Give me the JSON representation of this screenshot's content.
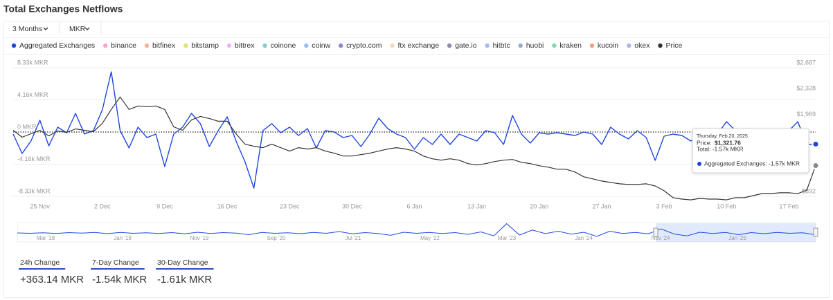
{
  "header": {
    "title": "Total Exchanges Netflows"
  },
  "controls": {
    "range": "3 Months",
    "unit": "MKR"
  },
  "chart_data": {
    "type": "line",
    "categories": [
      null,
      null,
      null,
      "25 Nov",
      null,
      null,
      null,
      null,
      null,
      null,
      "2 Dec",
      null,
      null,
      null,
      null,
      null,
      null,
      "9 Dec",
      null,
      null,
      null,
      null,
      null,
      null,
      "16 Dec",
      null,
      null,
      null,
      null,
      null,
      null,
      "23 Dec",
      null,
      null,
      null,
      null,
      null,
      null,
      "30 Dec",
      null,
      null,
      null,
      null,
      null,
      null,
      "6 Jan",
      null,
      null,
      null,
      null,
      null,
      null,
      "13 Jan",
      null,
      null,
      null,
      null,
      null,
      null,
      "20 Jan",
      null,
      null,
      null,
      null,
      null,
      null,
      "27 Jan",
      null,
      null,
      null,
      null,
      null,
      null,
      "3 Feb",
      null,
      null,
      null,
      null,
      null,
      null,
      "10 Feb",
      null,
      null,
      null,
      null,
      null,
      null,
      "17 Feb",
      null,
      null,
      null
    ],
    "series": [
      {
        "name": "Aggregated Exchanges",
        "color": "#1f45e0",
        "values": [
          -270,
          -2780,
          -1160,
          1520,
          -1790,
          630,
          -90,
          2420,
          -270,
          180,
          2870,
          7800,
          180,
          -2060,
          630,
          -720,
          -270,
          -4480,
          -270,
          630,
          2420,
          1080,
          -1880,
          180,
          1970,
          -1160,
          -3850,
          -7260,
          180,
          1080,
          -90,
          630,
          -450,
          450,
          -2060,
          180,
          20,
          -720,
          -450,
          -1880,
          -270,
          1790,
          450,
          -270,
          -720,
          -2240,
          -720,
          -1610,
          -270,
          -1610,
          -270,
          -720,
          -1160,
          180,
          -90,
          -1610,
          2150,
          -270,
          -1430,
          -90,
          -270,
          -90,
          -270,
          -450,
          0,
          -270,
          -1610,
          630,
          -270,
          -900,
          180,
          -720,
          -3670,
          -540,
          -270,
          -450,
          -1160,
          -270,
          -720,
          -270,
          1340,
          180,
          -270,
          180,
          -270,
          -450,
          0,
          180,
          1340,
          -1610,
          -1570
        ]
      },
      {
        "name": "Price",
        "color": "#333333",
        "axis": "y2",
        "values": [
          1814,
          1717,
          1765,
          1814,
          1736,
          1804,
          1785,
          1833,
          1814,
          1794,
          1911,
          2105,
          2279,
          2105,
          2153,
          2144,
          2153,
          2105,
          1862,
          1814,
          1959,
          2008,
          1979,
          1940,
          1940,
          1765,
          1620,
          1591,
          1571,
          1620,
          1571,
          1523,
          1571,
          1552,
          1571,
          1523,
          1494,
          1455,
          1455,
          1474,
          1494,
          1523,
          1552,
          1571,
          1552,
          1523,
          1455,
          1416,
          1397,
          1416,
          1397,
          1348,
          1329,
          1348,
          1377,
          1397,
          1406,
          1367,
          1348,
          1319,
          1299,
          1270,
          1270,
          1232,
          1164,
          1135,
          1105,
          1086,
          1067,
          1057,
          1057,
          1067,
          1037,
          970,
          873,
          853,
          843,
          863,
          853,
          853,
          843,
          873,
          873,
          902,
          931,
          931,
          941,
          941,
          931,
          979,
          1321.76
        ]
      }
    ],
    "hidden_series": [
      {
        "name": "binance",
        "color": "#f4a6cf"
      },
      {
        "name": "bitfinex",
        "color": "#f6b48e"
      },
      {
        "name": "bitstamp",
        "color": "#e6df72"
      },
      {
        "name": "bittrex",
        "color": "#e7b9f2"
      },
      {
        "name": "coinone",
        "color": "#8fc9c9"
      },
      {
        "name": "coinw",
        "color": "#9dbcf2"
      },
      {
        "name": "crypto.com",
        "color": "#8a8ac9"
      },
      {
        "name": "ftx exchange",
        "color": "#f6d9bb"
      },
      {
        "name": "gate.io",
        "color": "#8b8ba8"
      },
      {
        "name": "hitbtc",
        "color": "#a3baf8"
      },
      {
        "name": "huobi",
        "color": "#9aa9c9"
      },
      {
        "name": "kraken",
        "color": "#82d9aa"
      },
      {
        "name": "kucoin",
        "color": "#f2a383"
      },
      {
        "name": "okex",
        "color": "#aab9d9"
      }
    ],
    "ylim": [
      -8330,
      8330
    ],
    "yticks": [
      {
        "value": -8330,
        "label": "-8.33k MKR"
      },
      {
        "value": -4160,
        "label": "-4.16k MKR"
      },
      {
        "value": 0,
        "label": "0 MKR"
      },
      {
        "value": 4160,
        "label": "4.16k MKR"
      },
      {
        "value": 8330,
        "label": "8.33k MKR"
      }
    ],
    "y2lim": [
      892,
      2687
    ],
    "y2ticks": [
      {
        "value": 892,
        "label": "$892"
      },
      {
        "value": 1969,
        "label": "$1,969"
      },
      {
        "value": 2328,
        "label": "$2,328"
      },
      {
        "value": 2687,
        "label": "$2,687"
      }
    ],
    "grid": true,
    "tooltip": {
      "date": "Thursday, Feb 20, 2025",
      "price_label": "Price:",
      "price_value": "$1,321.76",
      "total": "Total: -1.57k MKR",
      "series_row": "Aggregated Exchanges: -1.57k MKR"
    },
    "navigator": {
      "labels": [
        "Mar '18",
        "Jan '19",
        "Nov '19",
        "Sep '20",
        "Jul '21",
        "May '22",
        "Mar '23",
        "Jan '24",
        "Nov '24",
        "Jan '25"
      ],
      "values": [
        0,
        -300,
        200,
        -400,
        300,
        -200,
        500,
        -600,
        400,
        -300,
        200,
        -500,
        300,
        -800,
        600,
        -400,
        300,
        -200,
        -1500,
        400,
        -300,
        200,
        -600,
        500,
        -300,
        1200,
        -700,
        300,
        -400,
        -2000,
        600,
        -300,
        400,
        -500,
        300,
        -1200,
        900,
        -2500,
        8000,
        -1800,
        2500,
        -600,
        1500,
        -1000,
        600,
        -3000,
        1500,
        -500,
        400,
        -700,
        3500,
        -900,
        -2500,
        600,
        -400,
        500,
        -1500,
        300,
        -600,
        400,
        -300,
        200,
        -1570
      ]
    }
  },
  "stats": [
    {
      "label": "24h Change",
      "value": "+363.14 MKR"
    },
    {
      "label": "7-Day Change",
      "value": "-1.54k MKR"
    },
    {
      "label": "30-Day Change",
      "value": "-1.61k MKR"
    }
  ]
}
